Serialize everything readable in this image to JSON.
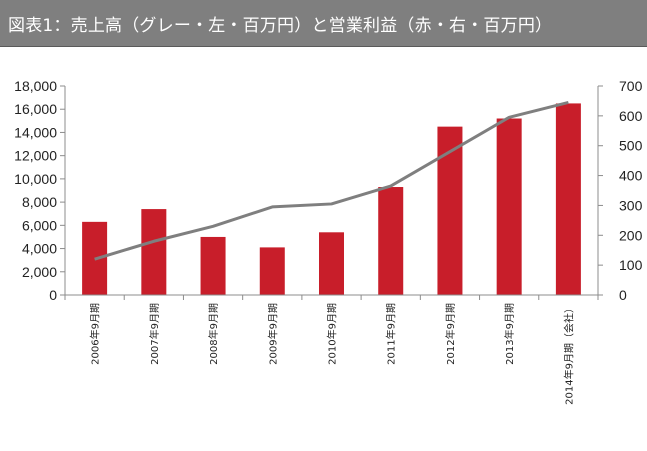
{
  "chart_data": {
    "type": "bar+line",
    "title": "図表1：売上高（グレー・左・百万円）と営業利益（赤・右・百万円）",
    "categories": [
      "2006年9月期",
      "2007年9月期",
      "2008年9月期",
      "2009年9月期",
      "2010年9月期",
      "2011年9月期",
      "2012年9月期",
      "2013年9月期",
      "2014年9月期（会社）"
    ],
    "series": [
      {
        "chart": "bar",
        "axis": "left",
        "values": [
          6300,
          7400,
          5000,
          4100,
          5400,
          9300,
          14500,
          15200,
          16500
        ]
      },
      {
        "chart": "line",
        "axis": "right",
        "values": [
          120,
          180,
          230,
          295,
          305,
          365,
          480,
          595,
          645
        ]
      }
    ],
    "left_axis": {
      "ylim": [
        0,
        18000
      ],
      "ticks": [
        "0",
        "2,000",
        "4,000",
        "6,000",
        "8,000",
        "10,000",
        "12,000",
        "14,000",
        "16,000",
        "18,000"
      ]
    },
    "right_axis": {
      "ylim": [
        0,
        700
      ],
      "ticks": [
        "0",
        "100",
        "200",
        "300",
        "400",
        "500",
        "600",
        "700"
      ]
    },
    "colors": {
      "bar": "#c81e2a",
      "line": "#7f7f7f",
      "title_bg": "#7f7f7f",
      "title_text": "#ffffff"
    },
    "grid": false,
    "legend": "none"
  }
}
